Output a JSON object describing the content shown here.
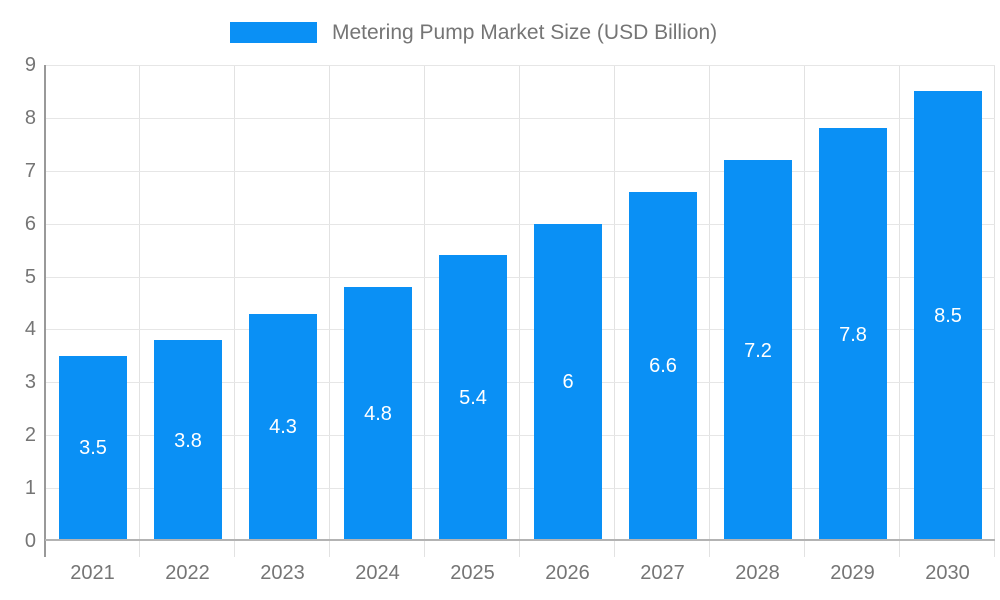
{
  "legend": {
    "label": "Metering Pump Market Size (USD Billion)"
  },
  "colors": {
    "bar": "#0a90f5",
    "legend_text": "#757575",
    "axis_text": "#757575",
    "value_label_text": "#ffffff",
    "h_gridline": "#e6e6e6",
    "v_gridline": "#e2e2e2",
    "y_axis_line": "#999999",
    "x_baseline": "#b3b3b3",
    "background": "#ffffff"
  },
  "chart_data": {
    "type": "bar",
    "title": "Metering Pump Market Size (USD Billion)",
    "series_name": "Metering Pump Market Size (USD Billion)",
    "categories": [
      "2021",
      "2022",
      "2023",
      "2024",
      "2025",
      "2026",
      "2027",
      "2028",
      "2029",
      "2030"
    ],
    "values": [
      3.5,
      3.8,
      4.3,
      4.8,
      5.4,
      6,
      6.6,
      7.2,
      7.8,
      8.5
    ],
    "value_labels": [
      "3.5",
      "3.8",
      "4.3",
      "4.8",
      "5.4",
      "6",
      "6.6",
      "7.2",
      "7.8",
      "8.5"
    ],
    "xlabel": "",
    "ylabel": "",
    "ylim": [
      0,
      9
    ],
    "y_ticks": [
      0,
      1,
      2,
      3,
      4,
      5,
      6,
      7,
      8,
      9
    ],
    "grid": true,
    "legend_position": "top",
    "value_labels_position": "center-inside"
  }
}
